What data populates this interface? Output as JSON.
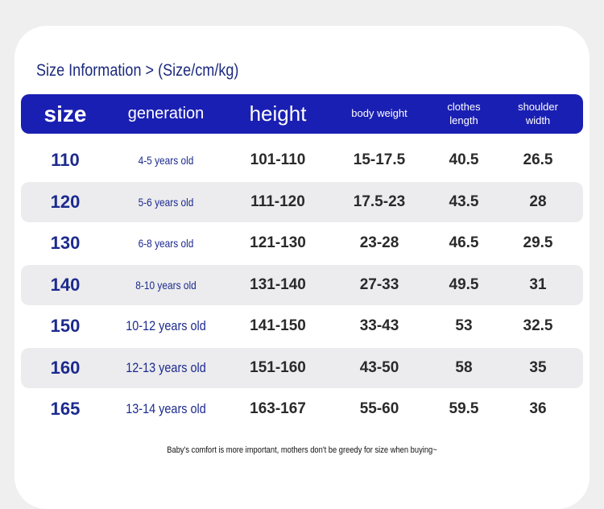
{
  "title": "Size Information > (Size/cm/kg)",
  "table": {
    "header": [
      "size",
      "generation",
      "height",
      "body weight",
      "clothes length",
      "shoulder width"
    ],
    "rows": [
      [
        "110",
        "4-5 years old",
        "101-110",
        "15-17.5",
        "40.5",
        "26.5"
      ],
      [
        "120",
        "5-6 years old",
        "111-120",
        "17.5-23",
        "43.5",
        "28"
      ],
      [
        "130",
        "6-8 years old",
        "121-130",
        "23-28",
        "46.5",
        "29.5"
      ],
      [
        "140",
        "8-10 years old",
        "131-140",
        "27-33",
        "49.5",
        "31"
      ],
      [
        "150",
        "10-12 years old",
        "141-150",
        "33-43",
        "53",
        "32.5"
      ],
      [
        "160",
        "12-13 years old",
        "151-160",
        "43-50",
        "58",
        "35"
      ],
      [
        "165",
        "13-14 years old",
        "163-167",
        "55-60",
        "59.5",
        "36"
      ]
    ]
  },
  "footer": "Baby's comfort is more important, mothers don't be greedy for size when buying~"
}
